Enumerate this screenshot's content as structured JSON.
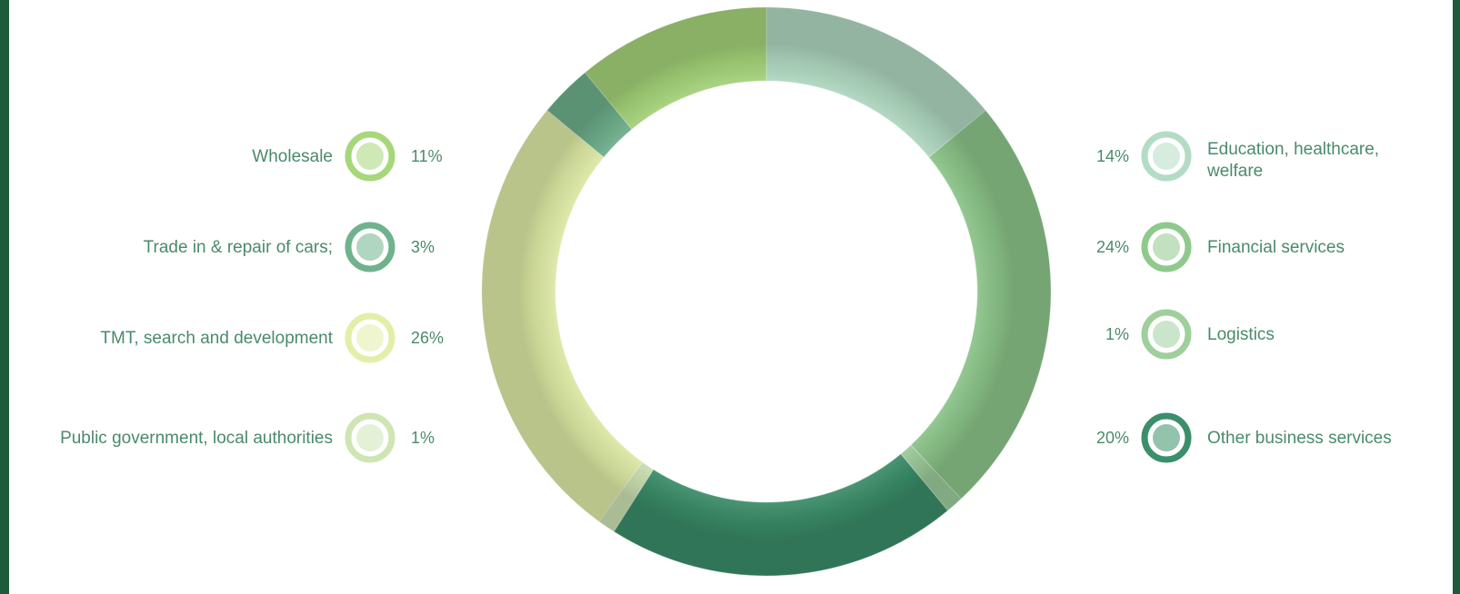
{
  "colors": {
    "frame": "#1d5b3a",
    "text": "#4a8a6c"
  },
  "chart_data": {
    "type": "pie",
    "title": "",
    "donut": true,
    "legend_placement": "left-and-right",
    "segments": [
      {
        "name": "Education, healthcare, welfare",
        "pct_label": "14%",
        "value": 14,
        "color": "#b3dcc4",
        "side": "right"
      },
      {
        "name": "Financial services",
        "pct_label": "24%",
        "value": 24,
        "color": "#8fc98c",
        "side": "right"
      },
      {
        "name": "Logistics",
        "pct_label": "1%",
        "value": 1,
        "color": "#9fcf9c",
        "side": "right"
      },
      {
        "name": "Other business services",
        "pct_label": "20%",
        "value": 20,
        "color": "#3b8f6a",
        "side": "right"
      },
      {
        "name": "Public government, local authorities",
        "pct_label": "1%",
        "value": 1,
        "color": "#cfe5b4",
        "side": "left"
      },
      {
        "name": "TMT, search and development",
        "pct_label": "26%",
        "value": 26,
        "color": "#e2efa8",
        "side": "left"
      },
      {
        "name": "Trade in & repair of cars;",
        "pct_label": "3%",
        "value": 3,
        "color": "#6fb28d",
        "side": "left"
      },
      {
        "name": "Wholesale",
        "pct_label": "11%",
        "value": 11,
        "color": "#a7d77a",
        "side": "left"
      }
    ]
  }
}
